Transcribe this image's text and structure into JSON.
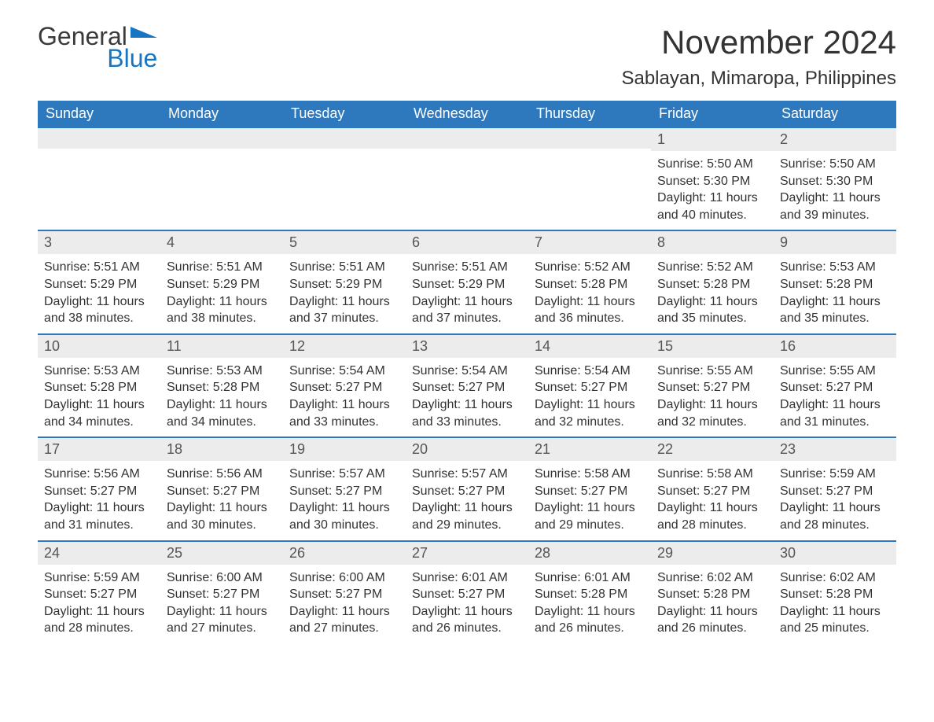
{
  "logo": {
    "general": "General",
    "blue": "Blue",
    "mark_color": "#1676c3"
  },
  "title": "November 2024",
  "location": "Sablayan, Mimaropa, Philippines",
  "colors": {
    "header_bg": "#2e79bd",
    "header_text": "#ffffff",
    "row_top_border": "#2e79bd",
    "daynum_bg": "#ececec",
    "body_text": "#333333",
    "page_bg": "#ffffff",
    "logo_blue": "#1676c3",
    "logo_gray": "#3a3a3a"
  },
  "weekday_headers": [
    "Sunday",
    "Monday",
    "Tuesday",
    "Wednesday",
    "Thursday",
    "Friday",
    "Saturday"
  ],
  "labels": {
    "sunrise": "Sunrise: ",
    "sunset": "Sunset: ",
    "daylight": "Daylight: "
  },
  "weeks": [
    [
      null,
      null,
      null,
      null,
      null,
      {
        "n": "1",
        "sunrise": "5:50 AM",
        "sunset": "5:30 PM",
        "daylight": "11 hours and 40 minutes."
      },
      {
        "n": "2",
        "sunrise": "5:50 AM",
        "sunset": "5:30 PM",
        "daylight": "11 hours and 39 minutes."
      }
    ],
    [
      {
        "n": "3",
        "sunrise": "5:51 AM",
        "sunset": "5:29 PM",
        "daylight": "11 hours and 38 minutes."
      },
      {
        "n": "4",
        "sunrise": "5:51 AM",
        "sunset": "5:29 PM",
        "daylight": "11 hours and 38 minutes."
      },
      {
        "n": "5",
        "sunrise": "5:51 AM",
        "sunset": "5:29 PM",
        "daylight": "11 hours and 37 minutes."
      },
      {
        "n": "6",
        "sunrise": "5:51 AM",
        "sunset": "5:29 PM",
        "daylight": "11 hours and 37 minutes."
      },
      {
        "n": "7",
        "sunrise": "5:52 AM",
        "sunset": "5:28 PM",
        "daylight": "11 hours and 36 minutes."
      },
      {
        "n": "8",
        "sunrise": "5:52 AM",
        "sunset": "5:28 PM",
        "daylight": "11 hours and 35 minutes."
      },
      {
        "n": "9",
        "sunrise": "5:53 AM",
        "sunset": "5:28 PM",
        "daylight": "11 hours and 35 minutes."
      }
    ],
    [
      {
        "n": "10",
        "sunrise": "5:53 AM",
        "sunset": "5:28 PM",
        "daylight": "11 hours and 34 minutes."
      },
      {
        "n": "11",
        "sunrise": "5:53 AM",
        "sunset": "5:28 PM",
        "daylight": "11 hours and 34 minutes."
      },
      {
        "n": "12",
        "sunrise": "5:54 AM",
        "sunset": "5:27 PM",
        "daylight": "11 hours and 33 minutes."
      },
      {
        "n": "13",
        "sunrise": "5:54 AM",
        "sunset": "5:27 PM",
        "daylight": "11 hours and 33 minutes."
      },
      {
        "n": "14",
        "sunrise": "5:54 AM",
        "sunset": "5:27 PM",
        "daylight": "11 hours and 32 minutes."
      },
      {
        "n": "15",
        "sunrise": "5:55 AM",
        "sunset": "5:27 PM",
        "daylight": "11 hours and 32 minutes."
      },
      {
        "n": "16",
        "sunrise": "5:55 AM",
        "sunset": "5:27 PM",
        "daylight": "11 hours and 31 minutes."
      }
    ],
    [
      {
        "n": "17",
        "sunrise": "5:56 AM",
        "sunset": "5:27 PM",
        "daylight": "11 hours and 31 minutes."
      },
      {
        "n": "18",
        "sunrise": "5:56 AM",
        "sunset": "5:27 PM",
        "daylight": "11 hours and 30 minutes."
      },
      {
        "n": "19",
        "sunrise": "5:57 AM",
        "sunset": "5:27 PM",
        "daylight": "11 hours and 30 minutes."
      },
      {
        "n": "20",
        "sunrise": "5:57 AM",
        "sunset": "5:27 PM",
        "daylight": "11 hours and 29 minutes."
      },
      {
        "n": "21",
        "sunrise": "5:58 AM",
        "sunset": "5:27 PM",
        "daylight": "11 hours and 29 minutes."
      },
      {
        "n": "22",
        "sunrise": "5:58 AM",
        "sunset": "5:27 PM",
        "daylight": "11 hours and 28 minutes."
      },
      {
        "n": "23",
        "sunrise": "5:59 AM",
        "sunset": "5:27 PM",
        "daylight": "11 hours and 28 minutes."
      }
    ],
    [
      {
        "n": "24",
        "sunrise": "5:59 AM",
        "sunset": "5:27 PM",
        "daylight": "11 hours and 28 minutes."
      },
      {
        "n": "25",
        "sunrise": "6:00 AM",
        "sunset": "5:27 PM",
        "daylight": "11 hours and 27 minutes."
      },
      {
        "n": "26",
        "sunrise": "6:00 AM",
        "sunset": "5:27 PM",
        "daylight": "11 hours and 27 minutes."
      },
      {
        "n": "27",
        "sunrise": "6:01 AM",
        "sunset": "5:27 PM",
        "daylight": "11 hours and 26 minutes."
      },
      {
        "n": "28",
        "sunrise": "6:01 AM",
        "sunset": "5:28 PM",
        "daylight": "11 hours and 26 minutes."
      },
      {
        "n": "29",
        "sunrise": "6:02 AM",
        "sunset": "5:28 PM",
        "daylight": "11 hours and 26 minutes."
      },
      {
        "n": "30",
        "sunrise": "6:02 AM",
        "sunset": "5:28 PM",
        "daylight": "11 hours and 25 minutes."
      }
    ]
  ]
}
